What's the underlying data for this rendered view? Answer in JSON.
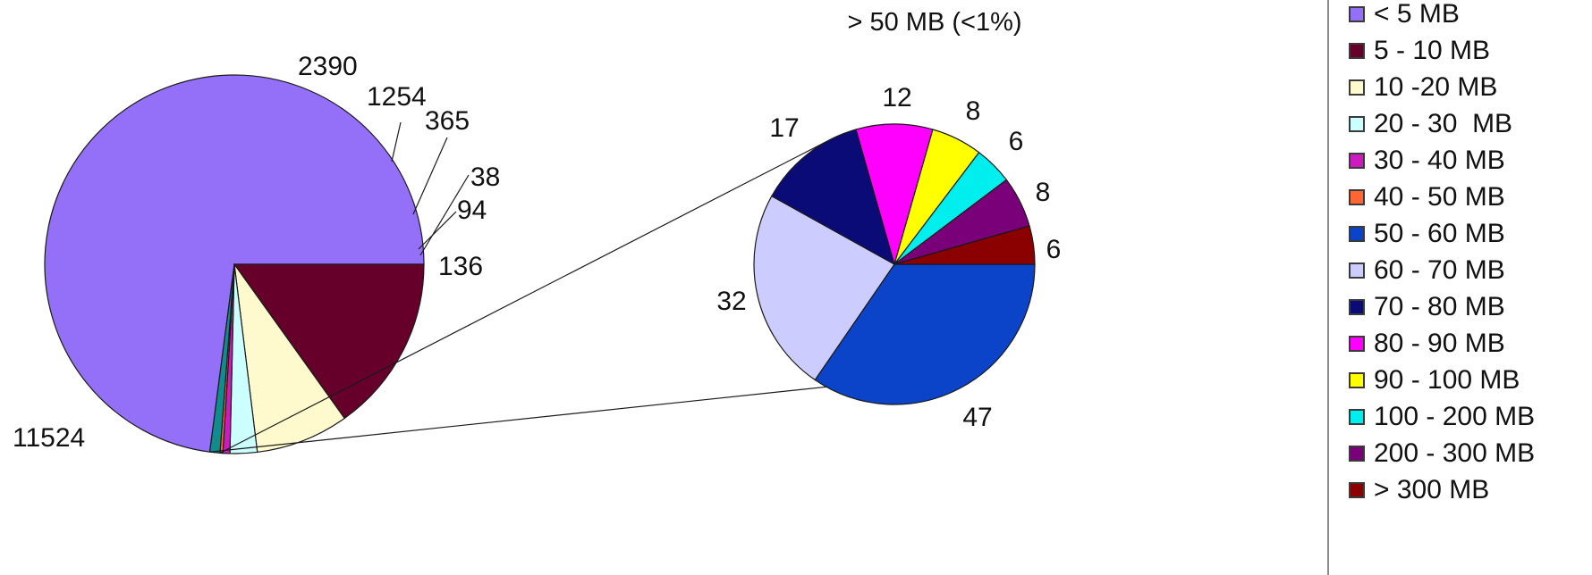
{
  "chart_data": {
    "type": "pie",
    "subtitle": "> 50 MB (<1%)",
    "main_pie": {
      "slices": [
        {
          "label": "< 5 MB",
          "value": 11524,
          "color": "#9370f7"
        },
        {
          "label": "5 - 10 MB",
          "value": 2390,
          "color": "#66002a"
        },
        {
          "label": "10 -20 MB",
          "value": 1254,
          "color": "#fffacd"
        },
        {
          "label": "20 - 30  MB",
          "value": 365,
          "color": "#ccffff"
        },
        {
          "label": "30 - 40 MB",
          "value": 94,
          "color": "#cc1cc0"
        },
        {
          "label": "40 - 50 MB",
          "value": 38,
          "color": "#ff6633"
        },
        {
          "label": "> 50 MB",
          "value": 136,
          "color": "#118b8b"
        }
      ],
      "value_labels": [
        "11524",
        "2390",
        "1254",
        "365",
        "94",
        "38",
        "136"
      ]
    },
    "detail_pie": {
      "slices": [
        {
          "label": "50 - 60 MB",
          "value": 47,
          "color": "#0b43c9"
        },
        {
          "label": "60 - 70 MB",
          "value": 32,
          "color": "#ccccff"
        },
        {
          "label": "70 - 80 MB",
          "value": 17,
          "color": "#0b0b78"
        },
        {
          "label": "80 - 90 MB",
          "value": 12,
          "color": "#ff00ff"
        },
        {
          "label": "90 - 100 MB",
          "value": 8,
          "color": "#ffff00"
        },
        {
          "label": "100 - 200 MB",
          "value": 6,
          "color": "#00eeee"
        },
        {
          "label": "200 - 300 MB",
          "value": 8,
          "color": "#7a007a"
        },
        {
          "label": "> 300 MB",
          "value": 6,
          "color": "#8b0000"
        }
      ],
      "value_labels": [
        "47",
        "32",
        "17",
        "12",
        "8",
        "6",
        "8",
        "6"
      ]
    },
    "legend": {
      "placement": "right",
      "entries": [
        {
          "label": "< 5 MB",
          "color": "#9370f7"
        },
        {
          "label": "5 - 10 MB",
          "color": "#66002a"
        },
        {
          "label": "10 -20 MB",
          "color": "#fffacd"
        },
        {
          "label": "20 - 30  MB",
          "color": "#ccffff"
        },
        {
          "label": "30 - 40 MB",
          "color": "#cc1cc0"
        },
        {
          "label": "40 - 50 MB",
          "color": "#ff6633"
        },
        {
          "label": "50 - 60 MB",
          "color": "#0b43c9"
        },
        {
          "label": "60 - 70 MB",
          "color": "#ccccff"
        },
        {
          "label": "70 - 80 MB",
          "color": "#0b0b78"
        },
        {
          "label": "80 - 90 MB",
          "color": "#ff00ff"
        },
        {
          "label": "90 - 100 MB",
          "color": "#ffff00"
        },
        {
          "label": "100 - 200 MB",
          "color": "#00eeee"
        },
        {
          "label": "200 - 300 MB",
          "color": "#7a007a"
        },
        {
          "label": "> 300 MB",
          "color": "#8b0000"
        }
      ]
    }
  }
}
